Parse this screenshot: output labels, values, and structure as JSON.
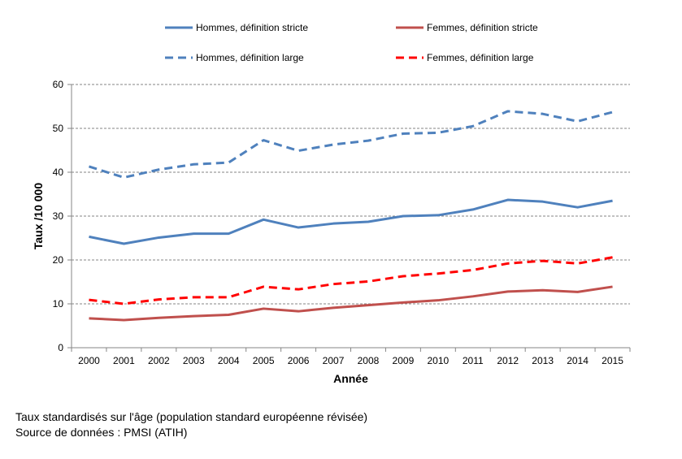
{
  "chart_data": {
    "type": "line",
    "xlabel": "Année",
    "ylabel": "Taux /10 000",
    "ylim": [
      0,
      60
    ],
    "yticks": [
      0,
      10,
      20,
      30,
      40,
      50,
      60
    ],
    "grid": true,
    "legend_position": "top",
    "categories": [
      "2000",
      "2001",
      "2002",
      "2003",
      "2004",
      "2005",
      "2006",
      "2007",
      "2008",
      "2009",
      "2010",
      "2011",
      "2012",
      "2013",
      "2014",
      "2015"
    ],
    "series": [
      {
        "name": "Hommes, définition stricte",
        "color": "#4F81BD",
        "dash": false,
        "values": [
          25.3,
          23.7,
          25.1,
          26.0,
          26.0,
          29.2,
          27.4,
          28.3,
          28.7,
          30.0,
          30.2,
          31.5,
          33.7,
          33.3,
          32.0,
          33.5
        ]
      },
      {
        "name": "Femmes, définition stricte",
        "color": "#C0504D",
        "dash": false,
        "values": [
          6.7,
          6.3,
          6.8,
          7.2,
          7.5,
          8.9,
          8.3,
          9.1,
          9.7,
          10.3,
          10.8,
          11.7,
          12.8,
          13.1,
          12.7,
          13.9
        ]
      },
      {
        "name": "Hommes, définition large",
        "color": "#4F81BD",
        "dash": true,
        "values": [
          41.3,
          38.8,
          40.6,
          41.8,
          42.2,
          47.3,
          44.9,
          46.3,
          47.2,
          48.8,
          49.0,
          50.5,
          53.9,
          53.3,
          51.6,
          53.7
        ]
      },
      {
        "name": "Femmes, définition large",
        "color": "#FF0000",
        "dash": true,
        "values": [
          10.9,
          10.0,
          11.0,
          11.5,
          11.5,
          13.9,
          13.3,
          14.5,
          15.1,
          16.3,
          16.9,
          17.7,
          19.2,
          19.8,
          19.2,
          20.6
        ]
      }
    ]
  },
  "notes": {
    "line1": "Taux standardisés sur l'âge (population standard européenne révisée)",
    "line2": "Source de données : PMSI (ATIH)"
  }
}
